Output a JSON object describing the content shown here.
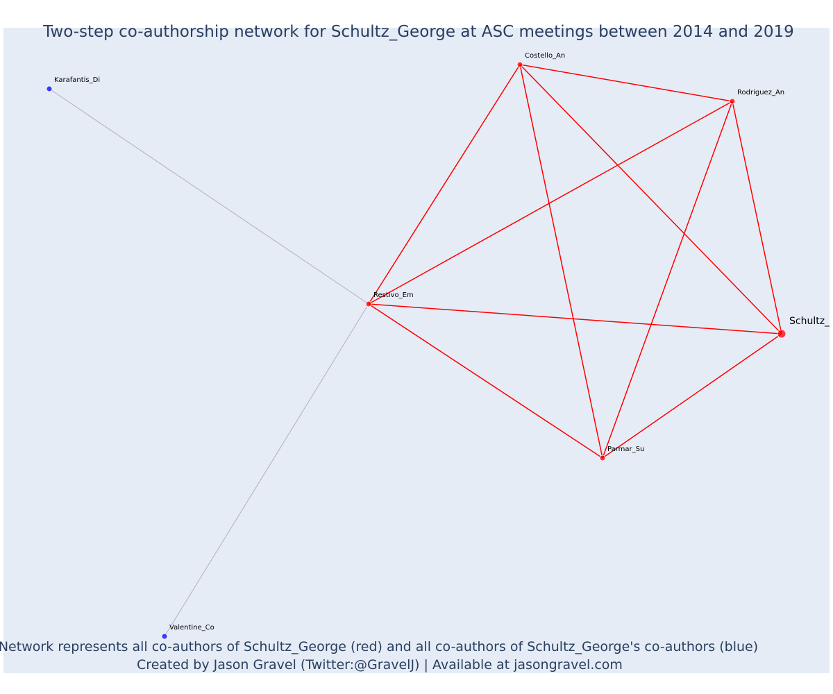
{
  "figure": {
    "title": "Two-step co-authorship network for Schultz_George at ASC meetings between 2014 and 2019",
    "caption_line1": "Network represents all co-authors of Schultz_George (red) and all co-authors of Schultz_George's co-authors (blue)",
    "caption_line2": "Created by Jason Gravel (Twitter:@GravelJ) | Available at jasongravel.com"
  },
  "colors": {
    "background": "#e5ecf6",
    "red_node": "#ff0000",
    "blue_node": "#0000ff",
    "red_edge": "#ff0000",
    "gray_edge": "#b0b0c0",
    "text": "#2a3f5f"
  },
  "chart_data": {
    "type": "network",
    "title": "Two-step co-authorship network for Schultz_George at ASC meetings between 2014 and 2019",
    "nodes": [
      {
        "id": "Schultz_George",
        "label": "Schultz_George",
        "group": "focal",
        "color": "red"
      },
      {
        "id": "Costello_An",
        "label": "Costello_An",
        "group": "co-author",
        "color": "red"
      },
      {
        "id": "Rodriguez_An",
        "label": "Rodriguez_An",
        "group": "co-author",
        "color": "red"
      },
      {
        "id": "Restivo_Em",
        "label": "Restivo_Em",
        "group": "co-author",
        "color": "red"
      },
      {
        "id": "Parmar_Su",
        "label": "Parmar_Su",
        "group": "co-author",
        "color": "red"
      },
      {
        "id": "Karafantis_Di",
        "label": "Karafantis_Di",
        "group": "second-step",
        "color": "blue"
      },
      {
        "id": "Valentine_Co",
        "label": "Valentine_Co",
        "group": "second-step",
        "color": "blue"
      }
    ],
    "edges": [
      {
        "source": "Costello_An",
        "target": "Rodriguez_An",
        "type": "red"
      },
      {
        "source": "Costello_An",
        "target": "Restivo_Em",
        "type": "red"
      },
      {
        "source": "Costello_An",
        "target": "Schultz_George",
        "type": "red"
      },
      {
        "source": "Costello_An",
        "target": "Parmar_Su",
        "type": "red"
      },
      {
        "source": "Rodriguez_An",
        "target": "Restivo_Em",
        "type": "red"
      },
      {
        "source": "Rodriguez_An",
        "target": "Schultz_George",
        "type": "red"
      },
      {
        "source": "Rodriguez_An",
        "target": "Parmar_Su",
        "type": "red"
      },
      {
        "source": "Restivo_Em",
        "target": "Schultz_George",
        "type": "red"
      },
      {
        "source": "Restivo_Em",
        "target": "Parmar_Su",
        "type": "red"
      },
      {
        "source": "Parmar_Su",
        "target": "Schultz_George",
        "type": "red"
      },
      {
        "source": "Restivo_Em",
        "target": "Karafantis_Di",
        "type": "gray"
      },
      {
        "source": "Restivo_Em",
        "target": "Valentine_Co",
        "type": "gray"
      }
    ]
  }
}
